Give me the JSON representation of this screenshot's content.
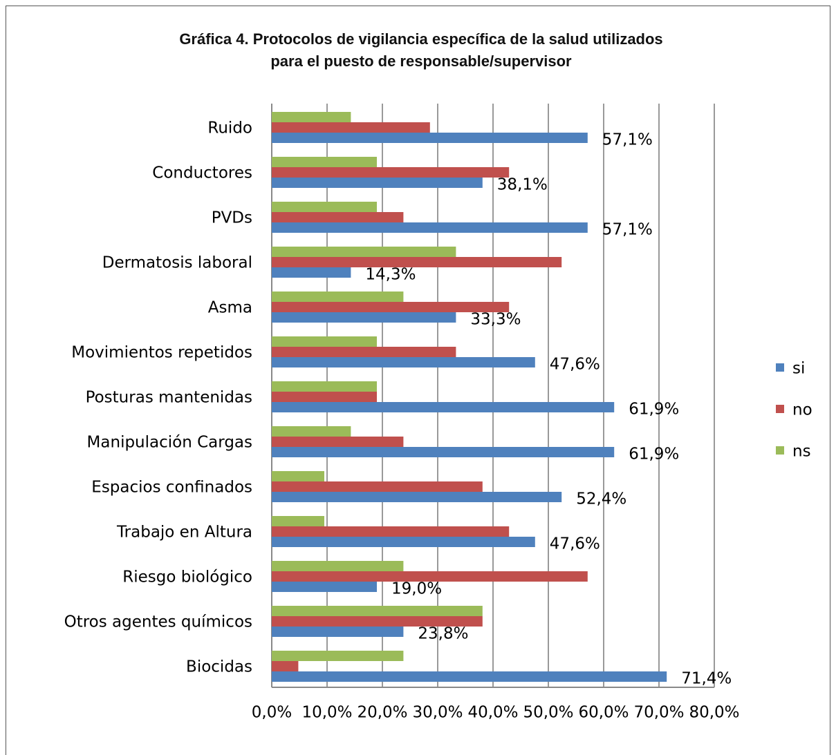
{
  "chart_data": {
    "type": "hbar",
    "title": [
      "Gráfica 4. Protocolos de vigilancia específica de la salud utilizados",
      "para el puesto de responsable/supervisor"
    ],
    "categories": [
      "Ruido",
      "Conductores",
      "PVDs",
      "Dermatosis laboral",
      "Asma",
      "Movimientos repetidos",
      "Posturas mantenidas",
      "Manipulación Cargas",
      "Espacios confinados",
      "Trabajo en Altura",
      "Riesgo biológico",
      "Otros agentes químicos",
      "Biocidas"
    ],
    "series": [
      {
        "name": "ns",
        "color": "#9bbb59",
        "values": [
          14.3,
          19.0,
          19.0,
          33.3,
          23.8,
          19.0,
          19.0,
          14.3,
          9.5,
          9.5,
          23.8,
          38.1,
          23.8
        ]
      },
      {
        "name": "no",
        "color": "#c0504d",
        "values": [
          28.6,
          42.9,
          23.8,
          52.4,
          42.9,
          33.3,
          19.0,
          23.8,
          38.1,
          42.9,
          57.1,
          38.1,
          4.8
        ]
      },
      {
        "name": "si",
        "color": "#4f81bd",
        "values": [
          57.1,
          38.1,
          57.1,
          14.3,
          33.3,
          47.6,
          61.9,
          61.9,
          52.4,
          47.6,
          19.0,
          23.8,
          71.4
        ],
        "value_labels": [
          "57,1%",
          "38,1%",
          "57,1%",
          "14,3%",
          "33,3%",
          "47,6%",
          "61,9%",
          "61,9%",
          "52,4%",
          "47,6%",
          "19,0%",
          "23,8%",
          "71,4%"
        ]
      }
    ],
    "xlim": [
      0,
      80
    ],
    "xticks": [
      {
        "value": 0,
        "label": "0,0%"
      },
      {
        "value": 10,
        "label": "10,0%"
      },
      {
        "value": 20,
        "label": "20,0%"
      },
      {
        "value": 30,
        "label": "30,0%"
      },
      {
        "value": 40,
        "label": "40,0%"
      },
      {
        "value": 50,
        "label": "50,0%"
      },
      {
        "value": 60,
        "label": "60,0%"
      },
      {
        "value": 70,
        "label": "70,0%"
      },
      {
        "value": 80,
        "label": "80,0%"
      }
    ],
    "grid": true,
    "legend": "right"
  }
}
